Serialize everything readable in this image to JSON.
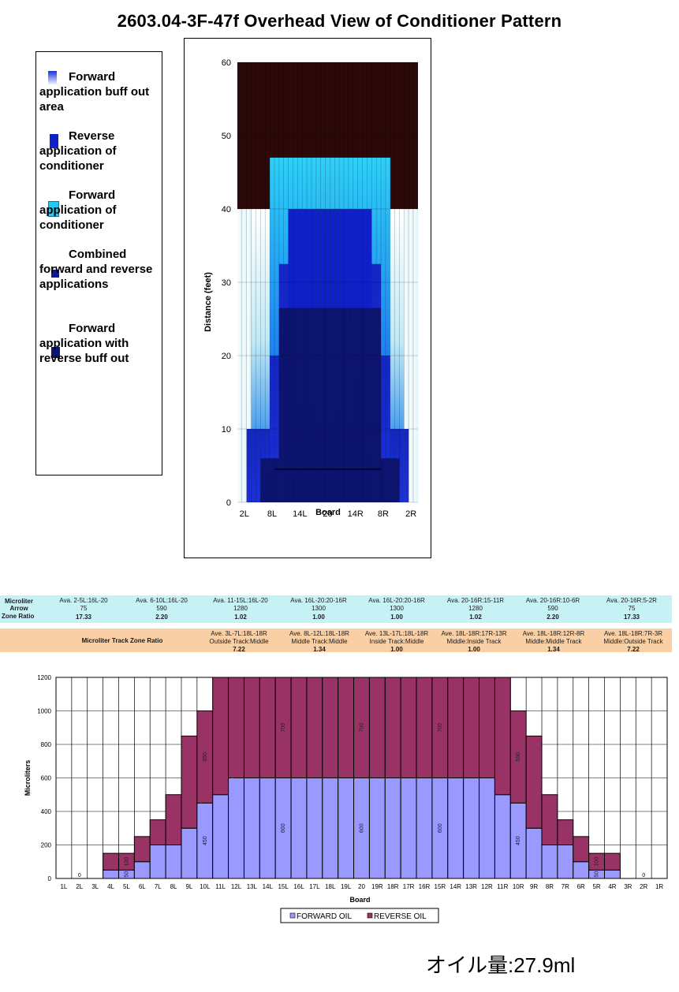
{
  "title": "2603.04-3F-47f Overhead View of Conditioner Pattern",
  "legend": [
    {
      "label": "Forward application buff out area",
      "swatch": "gradient-light"
    },
    {
      "label": "Reverse application of conditioner",
      "swatch": "#1020c8"
    },
    {
      "label": "Forward application of conditioner",
      "swatch": "#28c8f0"
    },
    {
      "label": "Combined forward and reverse applications",
      "swatch": "#101890"
    },
    {
      "label": "Forward application with reverse buff out",
      "swatch": "#0c1470"
    }
  ],
  "ratio_table": {
    "row_labels": [
      "Microliter",
      "Arrow",
      "Zone Ratio"
    ],
    "columns": [
      {
        "range": "Ava. 2-5L:16L-20",
        "microliter": "75",
        "ratio": "17.33"
      },
      {
        "range": "Ava. 6-10L:16L-20",
        "microliter": "590",
        "ratio": "2.20"
      },
      {
        "range": "Ava. 11-15L:16L-20",
        "microliter": "1280",
        "ratio": "1.02"
      },
      {
        "range": "Ava. 16L-20:20-16R",
        "microliter": "1300",
        "ratio": "1.00"
      },
      {
        "range": "Ava. 16L-20:20-16R",
        "microliter": "1300",
        "ratio": "1.00"
      },
      {
        "range": "Ava. 20-16R:15-11R",
        "microliter": "1280",
        "ratio": "1.02"
      },
      {
        "range": "Ava. 20-16R:10-6R",
        "microliter": "590",
        "ratio": "2.20"
      },
      {
        "range": "Ava. 20-16R:5-2R",
        "microliter": "75",
        "ratio": "17.33"
      }
    ]
  },
  "track_table": {
    "label": "Microliter Track Zone Ratio",
    "columns": [
      {
        "range": "Ave. 3L-7L:18L-18R",
        "zone": "Outside Track:Middle",
        "ratio": "7.22"
      },
      {
        "range": "Ave. 8L-12L:18L-18R",
        "zone": "Middle Track:Middle",
        "ratio": "1.34"
      },
      {
        "range": "Ave. 13L-17L:18L-18R",
        "zone": "Inside Track:Middle",
        "ratio": "1.00"
      },
      {
        "range": "Ave. 18L-18R:17R-13R",
        "zone": "Middle:Inside Track",
        "ratio": "1.00"
      },
      {
        "range": "Ave. 18L-18R:12R-8R",
        "zone": "Middle:Middle Track",
        "ratio": "1.34"
      },
      {
        "range": "Ave. 18L-18R:7R-3R",
        "zone": "Middle:Outside Track",
        "ratio": "7.22"
      }
    ]
  },
  "oil_amount": "オイル量:27.9ml",
  "chart_data": [
    {
      "type": "heatmap",
      "title": "",
      "xlabel": "Board",
      "ylabel": "Distance (feet)",
      "ylim": [
        0,
        60
      ],
      "yticks": [
        0,
        10,
        20,
        30,
        40,
        50,
        60
      ],
      "xtick_labels": [
        "2L",
        "8L",
        "14L",
        "20",
        "14R",
        "8R",
        "2R"
      ],
      "boards": [
        "1L",
        "2L",
        "3L",
        "4L",
        "5L",
        "6L",
        "7L",
        "8L",
        "9L",
        "10L",
        "11L",
        "12L",
        "13L",
        "14L",
        "15L",
        "16L",
        "17L",
        "18L",
        "19L",
        "20",
        "19R",
        "18R",
        "17R",
        "16R",
        "15R",
        "14R",
        "13R",
        "12R",
        "11R",
        "10R",
        "9R",
        "8R",
        "7R",
        "6R",
        "5R",
        "4R",
        "3R",
        "2R",
        "1R"
      ],
      "forward_length": [
        40,
        40,
        40,
        40,
        40,
        40,
        40,
        47,
        47,
        47,
        47,
        47,
        47,
        47,
        47,
        47,
        47,
        47,
        47,
        47,
        47,
        47,
        47,
        47,
        47,
        47,
        47,
        47,
        47,
        47,
        47,
        47,
        47,
        40,
        40,
        40,
        40,
        40,
        40
      ],
      "reverse_length": [
        0,
        0,
        10,
        10,
        10,
        10,
        10,
        20,
        20,
        32.5,
        32.5,
        40,
        40,
        40,
        40,
        40,
        40,
        40,
        40,
        40,
        40,
        40,
        40,
        40,
        40,
        40,
        40,
        40,
        40,
        32.5,
        32.5,
        20,
        20,
        10,
        10,
        10,
        10,
        0,
        0
      ],
      "reverse_buff_length": [
        0,
        0,
        0,
        0,
        0,
        6,
        6,
        6,
        6,
        26.5,
        26.5,
        26.5,
        26.5,
        26.5,
        26.5,
        26.5,
        26.5,
        26.5,
        26.5,
        26.5,
        26.5,
        26.5,
        26.5,
        26.5,
        26.5,
        26.5,
        26.5,
        26.5,
        26.5,
        26.5,
        26.5,
        6,
        6,
        6,
        6,
        0,
        0,
        0,
        0
      ],
      "reference_line": 4.5,
      "colors": {
        "dry": "#2c0808",
        "buff": "#ffffff",
        "forward": "#28c8f0",
        "reverse": "#1020c8",
        "combined": "#101890",
        "reverse_buff": "#0c1470"
      }
    },
    {
      "type": "bar",
      "stacked": true,
      "title": "",
      "xlabel": "Board",
      "ylabel": "Microliters",
      "ylim": [
        0,
        1200
      ],
      "yticks": [
        0,
        200,
        400,
        600,
        800,
        1000,
        1200
      ],
      "categories": [
        "1L",
        "2L",
        "3L",
        "4L",
        "5L",
        "6L",
        "7L",
        "8L",
        "9L",
        "10L",
        "11L",
        "12L",
        "13L",
        "14L",
        "15L",
        "16L",
        "17L",
        "18L",
        "19L",
        "20",
        "19R",
        "18R",
        "17R",
        "16R",
        "15R",
        "14R",
        "13R",
        "12R",
        "11R",
        "10R",
        "9R",
        "8R",
        "7R",
        "6R",
        "5R",
        "4R",
        "3R",
        "2R",
        "1R"
      ],
      "series": [
        {
          "name": "FORWARD OIL",
          "color": "#9999ff",
          "values": [
            0,
            0,
            0,
            50,
            50,
            100,
            200,
            200,
            300,
            450,
            500,
            600,
            600,
            600,
            600,
            600,
            600,
            600,
            600,
            600,
            600,
            600,
            600,
            600,
            600,
            600,
            600,
            600,
            500,
            450,
            300,
            200,
            200,
            100,
            50,
            50,
            0,
            0,
            0
          ]
        },
        {
          "name": "REVERSE OIL",
          "color": "#993366",
          "values": [
            0,
            0,
            0,
            100,
            100,
            150,
            150,
            300,
            550,
            550,
            700,
            700,
            700,
            700,
            700,
            700,
            700,
            700,
            700,
            700,
            700,
            700,
            700,
            700,
            700,
            700,
            700,
            700,
            700,
            550,
            550,
            300,
            150,
            150,
            100,
            100,
            0,
            0,
            0
          ]
        }
      ],
      "data_labels": [
        {
          "text": "0",
          "board": "2L"
        },
        {
          "text": "50",
          "board": "5L",
          "series": 0
        },
        {
          "text": "100",
          "board": "5L",
          "series": 1
        },
        {
          "text": "450",
          "board": "10L",
          "series": 0
        },
        {
          "text": "550",
          "board": "10L",
          "series": 1
        },
        {
          "text": "600",
          "board": "15L",
          "series": 0
        },
        {
          "text": "700",
          "board": "15L",
          "series": 1
        },
        {
          "text": "600",
          "board": "20",
          "series": 0
        },
        {
          "text": "700",
          "board": "20",
          "series": 1
        },
        {
          "text": "600",
          "board": "15R",
          "series": 0
        },
        {
          "text": "700",
          "board": "15R",
          "series": 1
        },
        {
          "text": "450",
          "board": "10R",
          "series": 0
        },
        {
          "text": "550",
          "board": "10R",
          "series": 1
        },
        {
          "text": "50",
          "board": "5R",
          "series": 0
        },
        {
          "text": "100",
          "board": "5R",
          "series": 1
        },
        {
          "text": "0",
          "board": "2R"
        }
      ],
      "legend_position": "bottom",
      "grid": true
    }
  ]
}
